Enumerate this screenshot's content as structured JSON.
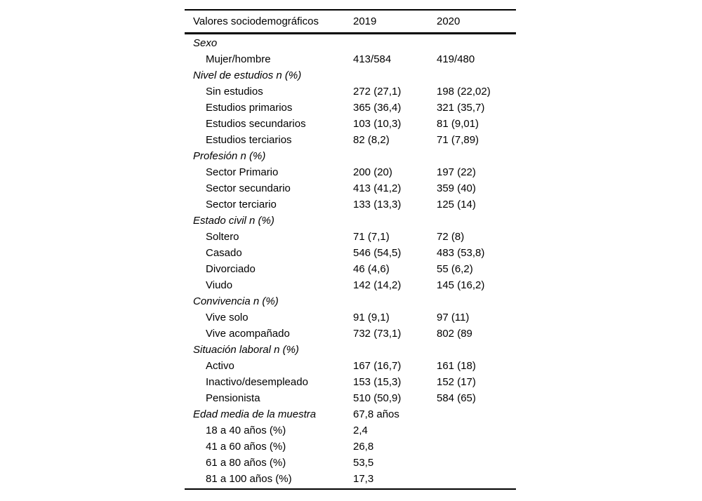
{
  "page": {
    "background": "#ffffff",
    "text_color": "#000000",
    "rule_color": "#000000"
  },
  "table": {
    "headers": {
      "label": "Valores sociodemográficos",
      "col2019": "2019",
      "col2020": "2020"
    },
    "rows": [
      {
        "type": "section",
        "label": "Sexo",
        "v2019": "",
        "v2020": ""
      },
      {
        "type": "item",
        "label": "Mujer/hombre",
        "v2019": "413/584",
        "v2020": "419/480"
      },
      {
        "type": "section",
        "label": "Nivel de estudios n (%)",
        "v2019": "",
        "v2020": ""
      },
      {
        "type": "item",
        "label": "Sin estudios",
        "v2019": "272 (27,1)",
        "v2020": "198 (22,02)"
      },
      {
        "type": "item",
        "label": "Estudios primarios",
        "v2019": "365 (36,4)",
        "v2020": "321 (35,7)"
      },
      {
        "type": "item",
        "label": "Estudios secundarios",
        "v2019": "103 (10,3)",
        "v2020": "81 (9,01)"
      },
      {
        "type": "item",
        "label": "Estudios terciarios",
        "v2019": "82 (8,2)",
        "v2020": "71 (7,89)"
      },
      {
        "type": "section",
        "label": "Profesión n (%)",
        "v2019": "",
        "v2020": ""
      },
      {
        "type": "item",
        "label": "Sector Primario",
        "v2019": "200 (20)",
        "v2020": "197 (22)"
      },
      {
        "type": "item",
        "label": "Sector secundario",
        "v2019": "413 (41,2)",
        "v2020": "359 (40)"
      },
      {
        "type": "item",
        "label": "Sector terciario",
        "v2019": "133 (13,3)",
        "v2020": "125 (14)"
      },
      {
        "type": "section",
        "label": "Estado civil n (%)",
        "v2019": "",
        "v2020": ""
      },
      {
        "type": "item",
        "label": "Soltero",
        "v2019": "71 (7,1)",
        "v2020": "72 (8)"
      },
      {
        "type": "item",
        "label": "Casado",
        "v2019": "546 (54,5)",
        "v2020": "483 (53,8)"
      },
      {
        "type": "item",
        "label": "Divorciado",
        "v2019": "46 (4,6)",
        "v2020": "55 (6,2)"
      },
      {
        "type": "item",
        "label": "Viudo",
        "v2019": "142 (14,2)",
        "v2020": "145 (16,2)"
      },
      {
        "type": "section",
        "label": "Convivencia n (%)",
        "v2019": "",
        "v2020": ""
      },
      {
        "type": "item",
        "label": "Vive solo",
        "v2019": "91 (9,1)",
        "v2020": "97 (11)"
      },
      {
        "type": "item",
        "label": "Vive acompañado",
        "v2019": "732 (73,1)",
        "v2020": "802 (89"
      },
      {
        "type": "section",
        "label": "Situación laboral n (%)",
        "v2019": "",
        "v2020": ""
      },
      {
        "type": "item",
        "label": "Activo",
        "v2019": "167 (16,7)",
        "v2020": "161 (18)"
      },
      {
        "type": "item",
        "label": "Inactivo/desempleado",
        "v2019": "153 (15,3)",
        "v2020": "152 (17)"
      },
      {
        "type": "item",
        "label": "Pensionista",
        "v2019": "510 (50,9)",
        "v2020": "584 (65)"
      },
      {
        "type": "section",
        "label": "Edad media de la muestra",
        "v2019": "67,8 años",
        "v2020": ""
      },
      {
        "type": "item",
        "label": "18 a 40 años (%)",
        "v2019": "2,4",
        "v2020": ""
      },
      {
        "type": "item",
        "label": "41 a 60 años (%)",
        "v2019": "26,8",
        "v2020": ""
      },
      {
        "type": "item",
        "label": "61 a 80 años (%)",
        "v2019": "53,5",
        "v2020": ""
      },
      {
        "type": "item",
        "label": "81 a 100 años (%)",
        "v2019": "17,3",
        "v2020": ""
      }
    ]
  }
}
